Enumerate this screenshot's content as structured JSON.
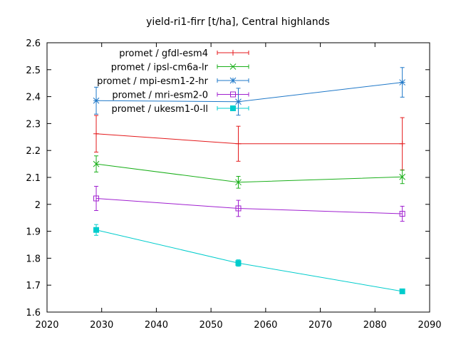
{
  "chart_data": {
    "type": "line",
    "title": "yield-ri1-firr [t/ha], Central highlands",
    "xlabel": "",
    "ylabel": "",
    "xlim": [
      2020,
      2090
    ],
    "ylim": [
      1.6,
      2.6
    ],
    "xticks": [
      2020,
      2030,
      2040,
      2050,
      2060,
      2070,
      2080,
      2090
    ],
    "yticks": [
      1.6,
      1.7,
      1.8,
      1.9,
      2.0,
      2.1,
      2.2,
      2.3,
      2.4,
      2.5,
      2.6
    ],
    "ytick_labels": [
      "1.6",
      "1.7",
      "1.8",
      "1.9",
      "2",
      "2.1",
      "2.2",
      "2.3",
      "2.4",
      "2.5",
      "2.6"
    ],
    "x": [
      2029,
      2055,
      2085
    ],
    "grid": false,
    "legend_position": "top-left",
    "series": [
      {
        "name": "promet / gfdl-esm4",
        "color": "#e41a1c",
        "marker": "plus",
        "values": [
          2.262,
          2.225,
          2.225
        ],
        "errors": [
          0.068,
          0.065,
          0.097
        ]
      },
      {
        "name": "promet / ipsl-cm6a-lr",
        "color": "#1aaf1a",
        "marker": "cross",
        "values": [
          2.15,
          2.082,
          2.102
        ],
        "errors": [
          0.03,
          0.022,
          0.025
        ]
      },
      {
        "name": "promet / mpi-esm1-2-hr",
        "color": "#1f78c8",
        "marker": "star",
        "values": [
          2.385,
          2.381,
          2.453
        ],
        "errors": [
          0.05,
          0.05,
          0.055
        ]
      },
      {
        "name": "promet / mri-esm2-0",
        "color": "#a020d0",
        "marker": "square-open",
        "values": [
          2.022,
          1.985,
          1.965
        ],
        "errors": [
          0.045,
          0.03,
          0.028
        ]
      },
      {
        "name": "promet / ukesm1-0-ll",
        "color": "#00cccc",
        "marker": "square-filled",
        "values": [
          1.905,
          1.782,
          1.677
        ],
        "errors": [
          0.02,
          0.012,
          0.008
        ]
      }
    ]
  }
}
